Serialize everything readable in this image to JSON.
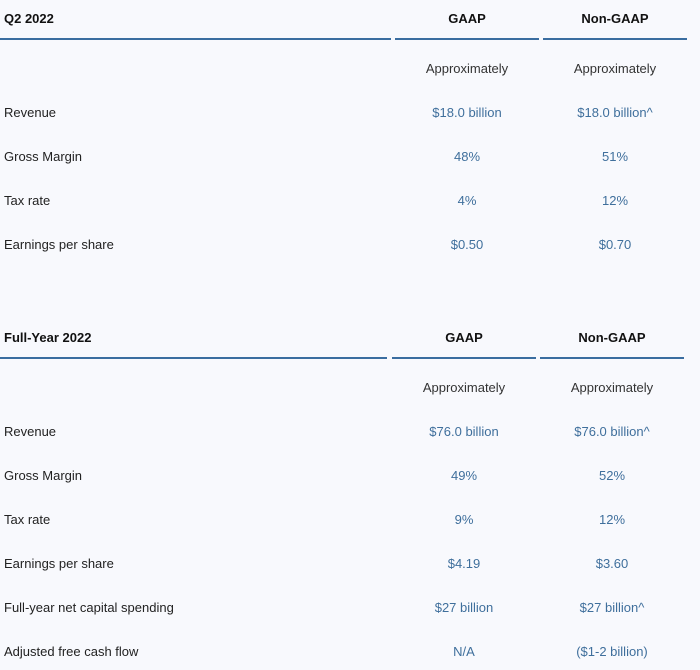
{
  "tables": [
    {
      "header": {
        "period": "Q2 2022",
        "gaap": "GAAP",
        "nongaap": "Non-GAAP"
      },
      "subheader": {
        "gaap": "Approximately",
        "nongaap": "Approximately"
      },
      "rows": [
        {
          "label": "Revenue",
          "gaap": "$18.0 billion",
          "nongaap": "$18.0 billion^"
        },
        {
          "label": "Gross Margin",
          "gaap": "48%",
          "nongaap": "51%"
        },
        {
          "label": "Tax rate",
          "gaap": "4%",
          "nongaap": "12%"
        },
        {
          "label": "Earnings per share",
          "gaap": "$0.50",
          "nongaap": "$0.70"
        }
      ]
    },
    {
      "header": {
        "period": "Full-Year 2022",
        "gaap": "GAAP",
        "nongaap": "Non-GAAP"
      },
      "subheader": {
        "gaap": "Approximately",
        "nongaap": "Approximately"
      },
      "rows": [
        {
          "label": "Revenue",
          "gaap": "$76.0 billion",
          "nongaap": "$76.0 billion^"
        },
        {
          "label": "Gross Margin",
          "gaap": "49%",
          "nongaap": "52%"
        },
        {
          "label": "Tax rate",
          "gaap": "9%",
          "nongaap": "12%"
        },
        {
          "label": "Earnings per share",
          "gaap": "$4.19",
          "nongaap": "$3.60"
        },
        {
          "label": "Full-year net capital spending",
          "gaap": "$27 billion",
          "nongaap": "$27 billion^"
        },
        {
          "label": "Adjusted free cash flow",
          "gaap": "N/A",
          "nongaap": "($1-2 billion)"
        }
      ]
    }
  ]
}
